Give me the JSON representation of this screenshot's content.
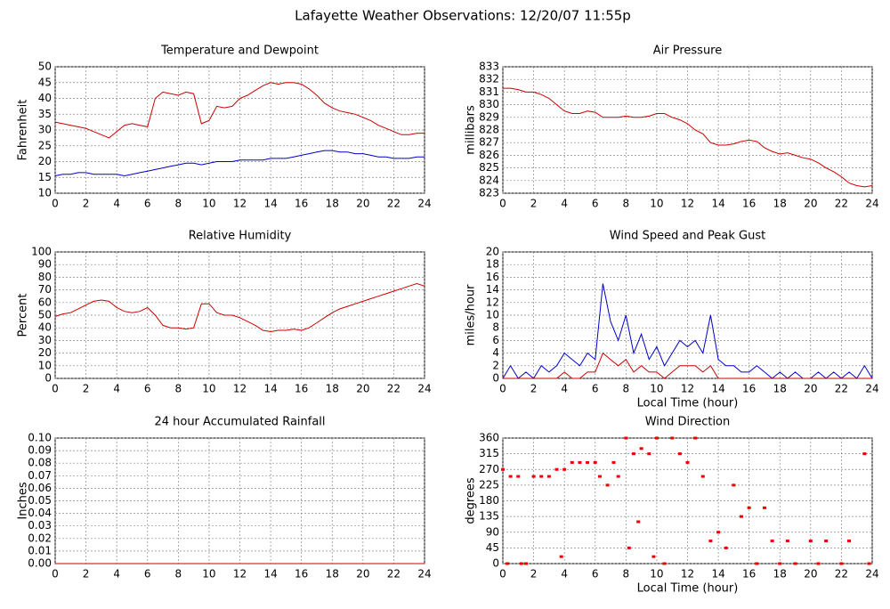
{
  "title": "Lafayette Weather Observations: 12/20/07 11:55p",
  "chart_data": [
    {
      "type": "line",
      "title": "Temperature and Dewpoint",
      "ylabel": "Fahrenheit",
      "x": [
        0,
        0.5,
        1,
        1.5,
        2,
        2.5,
        3,
        3.5,
        4,
        4.5,
        5,
        5.5,
        6,
        6.5,
        7,
        7.5,
        8,
        8.5,
        9,
        9.5,
        10,
        10.5,
        11,
        11.5,
        12,
        12.5,
        13,
        13.5,
        14,
        14.5,
        15,
        15.5,
        16,
        16.5,
        17,
        17.5,
        18,
        18.5,
        19,
        19.5,
        20,
        20.5,
        21,
        21.5,
        22,
        22.5,
        23,
        23.5,
        24
      ],
      "series": [
        {
          "color": "#cc0000",
          "values": [
            32.5,
            32,
            31.5,
            31,
            30.5,
            29.5,
            28.5,
            27.5,
            29.5,
            31.5,
            32,
            31.5,
            31,
            40,
            42,
            41.5,
            41,
            42,
            41.5,
            32,
            33,
            37.5,
            37,
            37.5,
            40,
            41,
            42.5,
            44,
            45,
            44.5,
            45,
            45,
            44.5,
            43,
            41,
            38.5,
            37,
            36,
            35.5,
            35,
            34,
            33,
            31.5,
            30.5,
            29.5,
            28.5,
            28.5,
            29,
            29
          ]
        },
        {
          "color": "#0000cc",
          "values": [
            15.5,
            16,
            16,
            16.5,
            16.5,
            16,
            16,
            16,
            16,
            15.5,
            16,
            16.5,
            17,
            17.5,
            18,
            18.5,
            19,
            19.5,
            19.5,
            19,
            19.5,
            20,
            20,
            20,
            20.5,
            20.5,
            20.5,
            20.5,
            21,
            21,
            21,
            21.5,
            22,
            22.5,
            23,
            23.5,
            23.5,
            23,
            23,
            22.5,
            22.5,
            22,
            21.5,
            21.5,
            21,
            21,
            21,
            21.5,
            21.5
          ]
        }
      ],
      "xlim": [
        0,
        24
      ],
      "xticks": [
        0,
        2,
        4,
        6,
        8,
        10,
        12,
        14,
        16,
        18,
        20,
        22,
        24
      ],
      "ylim": [
        10,
        50
      ],
      "yticks": [
        10,
        15,
        20,
        25,
        30,
        35,
        40,
        45,
        50
      ],
      "grid": true
    },
    {
      "type": "line",
      "title": "Air Pressure",
      "ylabel": "millibars",
      "x": [
        0,
        0.5,
        1,
        1.5,
        2,
        2.5,
        3,
        3.5,
        4,
        4.5,
        5,
        5.5,
        6,
        6.5,
        7,
        7.5,
        8,
        8.5,
        9,
        9.5,
        10,
        10.5,
        11,
        11.5,
        12,
        12.5,
        13,
        13.5,
        14,
        14.5,
        15,
        15.5,
        16,
        16.5,
        17,
        17.5,
        18,
        18.5,
        19,
        19.5,
        20,
        20.5,
        21,
        21.5,
        22,
        22.5,
        23,
        23.5,
        24
      ],
      "series": [
        {
          "color": "#cc0000",
          "values": [
            831.3,
            831.3,
            831.2,
            831,
            831,
            830.8,
            830.5,
            830,
            829.5,
            829.3,
            829.3,
            829.5,
            829.4,
            829,
            829,
            829,
            829.1,
            829,
            829,
            829.1,
            829.3,
            829.3,
            829,
            828.8,
            828.5,
            828,
            827.7,
            827,
            826.8,
            826.8,
            826.9,
            827.1,
            827.2,
            827.1,
            826.6,
            826.3,
            826.1,
            826.2,
            826,
            825.8,
            825.7,
            825.4,
            825,
            824.7,
            824.3,
            823.8,
            823.6,
            823.5,
            823.6
          ]
        }
      ],
      "xlim": [
        0,
        24
      ],
      "xticks": [
        0,
        2,
        4,
        6,
        8,
        10,
        12,
        14,
        16,
        18,
        20,
        22,
        24
      ],
      "ylim": [
        823,
        833
      ],
      "yticks": [
        823,
        824,
        825,
        826,
        827,
        828,
        829,
        830,
        831,
        832,
        833
      ],
      "grid": true
    },
    {
      "type": "line",
      "title": "Relative Humidity",
      "ylabel": "Percent",
      "x": [
        0,
        0.5,
        1,
        1.5,
        2,
        2.5,
        3,
        3.5,
        4,
        4.5,
        5,
        5.5,
        6,
        6.5,
        7,
        7.5,
        8,
        8.5,
        9,
        9.5,
        10,
        10.5,
        11,
        11.5,
        12,
        12.5,
        13,
        13.5,
        14,
        14.5,
        15,
        15.5,
        16,
        16.5,
        17,
        17.5,
        18,
        18.5,
        19,
        19.5,
        20,
        20.5,
        21,
        21.5,
        22,
        22.5,
        23,
        23.5,
        24
      ],
      "series": [
        {
          "color": "#cc0000",
          "values": [
            49,
            51,
            52,
            55,
            58,
            61,
            62,
            61,
            56,
            53,
            52,
            53,
            56,
            50,
            42,
            40,
            40,
            39,
            40,
            59,
            59,
            52,
            50,
            50,
            48,
            45,
            42,
            38,
            37,
            38,
            38,
            39,
            38,
            40,
            44,
            48,
            52,
            55,
            57,
            59,
            61,
            63,
            65,
            67,
            69,
            71,
            73,
            75,
            73
          ]
        }
      ],
      "xlim": [
        0,
        24
      ],
      "xticks": [
        0,
        2,
        4,
        6,
        8,
        10,
        12,
        14,
        16,
        18,
        20,
        22,
        24
      ],
      "ylim": [
        0,
        100
      ],
      "yticks": [
        0,
        10,
        20,
        30,
        40,
        50,
        60,
        70,
        80,
        90,
        100
      ],
      "grid": true
    },
    {
      "type": "line",
      "title": "Wind Speed and Peak Gust",
      "ylabel": "miles/hour",
      "xlabel": "Local Time (hour)",
      "x": [
        0,
        0.5,
        1,
        1.5,
        2,
        2.5,
        3,
        3.5,
        4,
        4.5,
        5,
        5.5,
        6,
        6.5,
        7,
        7.5,
        8,
        8.5,
        9,
        9.5,
        10,
        10.5,
        11,
        11.5,
        12,
        12.5,
        13,
        13.5,
        14,
        14.5,
        15,
        15.5,
        16,
        16.5,
        17,
        17.5,
        18,
        18.5,
        19,
        19.5,
        20,
        20.5,
        21,
        21.5,
        22,
        22.5,
        23,
        23.5,
        24
      ],
      "series": [
        {
          "color": "#0000cc",
          "values": [
            0,
            2,
            0,
            1,
            0,
            2,
            1,
            2,
            4,
            3,
            2,
            4,
            3,
            15,
            9,
            6,
            10,
            4,
            7,
            3,
            5,
            2,
            4,
            6,
            5,
            6,
            4,
            10,
            3,
            2,
            2,
            1,
            1,
            2,
            1,
            0,
            1,
            0,
            1,
            0,
            0,
            1,
            0,
            1,
            0,
            1,
            0,
            2,
            0
          ]
        },
        {
          "color": "#cc0000",
          "values": [
            0,
            0,
            0,
            0,
            0,
            0,
            0,
            0,
            1,
            0,
            0,
            1,
            1,
            4,
            3,
            2,
            3,
            1,
            2,
            1,
            1,
            0,
            1,
            2,
            2,
            2,
            1,
            2,
            0,
            0,
            0,
            0,
            0,
            0,
            0,
            0,
            0,
            0,
            0,
            0,
            0,
            0,
            0,
            0,
            0,
            0,
            0,
            0,
            0
          ]
        }
      ],
      "xlim": [
        0,
        24
      ],
      "xticks": [
        0,
        2,
        4,
        6,
        8,
        10,
        12,
        14,
        16,
        18,
        20,
        22,
        24
      ],
      "ylim": [
        0,
        20
      ],
      "yticks": [
        0,
        2,
        4,
        6,
        8,
        10,
        12,
        14,
        16,
        18,
        20
      ],
      "grid": true
    },
    {
      "type": "line",
      "title": "24 hour Accumulated Rainfall",
      "ylabel": "Inches",
      "x": [
        0,
        24
      ],
      "series": [
        {
          "color": "#cc0000",
          "values": [
            0,
            0
          ]
        }
      ],
      "xlim": [
        0,
        24
      ],
      "xticks": [
        0,
        2,
        4,
        6,
        8,
        10,
        12,
        14,
        16,
        18,
        20,
        22,
        24
      ],
      "ylim": [
        0,
        0.1
      ],
      "yticks": [
        {
          "value": 0,
          "label": "0.00"
        },
        {
          "value": 0.01,
          "label": "0.01"
        },
        {
          "value": 0.02,
          "label": "0.02"
        },
        {
          "value": 0.03,
          "label": "0.03"
        },
        {
          "value": 0.04,
          "label": "0.04"
        },
        {
          "value": 0.05,
          "label": "0.05"
        },
        {
          "value": 0.06,
          "label": "0.06"
        },
        {
          "value": 0.07,
          "label": "0.07"
        },
        {
          "value": 0.08,
          "label": "0.08"
        },
        {
          "value": 0.09,
          "label": "0.09"
        },
        {
          "value": 0.1,
          "label": "0.10"
        }
      ],
      "grid": true
    },
    {
      "type": "scatter",
      "title": "Wind Direction",
      "ylabel": "degrees",
      "xlabel": "Local Time (hour)",
      "color": "#ee0000",
      "x": [
        0,
        0.3,
        0.5,
        1,
        1.2,
        1.5,
        2,
        2.5,
        3,
        3.5,
        3.8,
        4,
        4.5,
        5,
        5.5,
        6,
        6.3,
        6.8,
        7.2,
        7.5,
        8,
        8.2,
        8.5,
        8.8,
        9,
        9.5,
        9.8,
        10,
        10.5,
        11,
        11.5,
        12,
        12.5,
        13,
        13.5,
        14,
        14.5,
        15,
        15.5,
        16,
        16.5,
        17,
        17.5,
        18,
        18.5,
        19,
        20,
        20.5,
        21,
        22,
        22.5,
        23.5,
        23.8
      ],
      "values": [
        270,
        0,
        250,
        250,
        0,
        0,
        250,
        250,
        250,
        270,
        20,
        270,
        290,
        290,
        290,
        290,
        250,
        225,
        290,
        250,
        360,
        45,
        315,
        120,
        330,
        315,
        20,
        360,
        0,
        360,
        315,
        290,
        360,
        250,
        65,
        90,
        45,
        225,
        135,
        160,
        0,
        160,
        65,
        0,
        65,
        0,
        65,
        0,
        65,
        0,
        65,
        315,
        0
      ],
      "xlim": [
        0,
        24
      ],
      "xticks": [
        0,
        2,
        4,
        6,
        8,
        10,
        12,
        14,
        16,
        18,
        20,
        22,
        24
      ],
      "ylim": [
        0,
        360
      ],
      "yticks": [
        0,
        45,
        90,
        135,
        180,
        225,
        270,
        315,
        360
      ],
      "grid": true
    }
  ]
}
